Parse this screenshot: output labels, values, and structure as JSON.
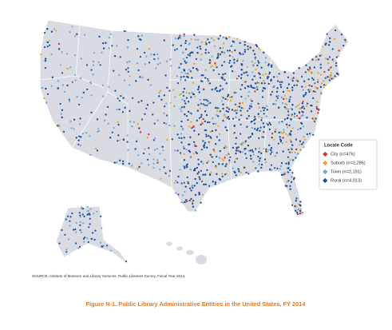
{
  "legend": {
    "title": "Locale Code",
    "items": [
      {
        "label": "City (n=476)",
        "color": "#d7312a"
      },
      {
        "label": "Suburb (n=2,286)",
        "color": "#f0a21e"
      },
      {
        "label": "Town (n=2,191)",
        "color": "#6fa7da"
      },
      {
        "label": "Rural (n=4,013)",
        "color": "#1b4f9e"
      }
    ]
  },
  "source": "SOURCE: Institute of Museum and Library Services, Public Libraries Survey, Fiscal Year 2014.",
  "caption": "Figure N-1. Public Library Administrative Entities in the United States, FY 2014"
}
